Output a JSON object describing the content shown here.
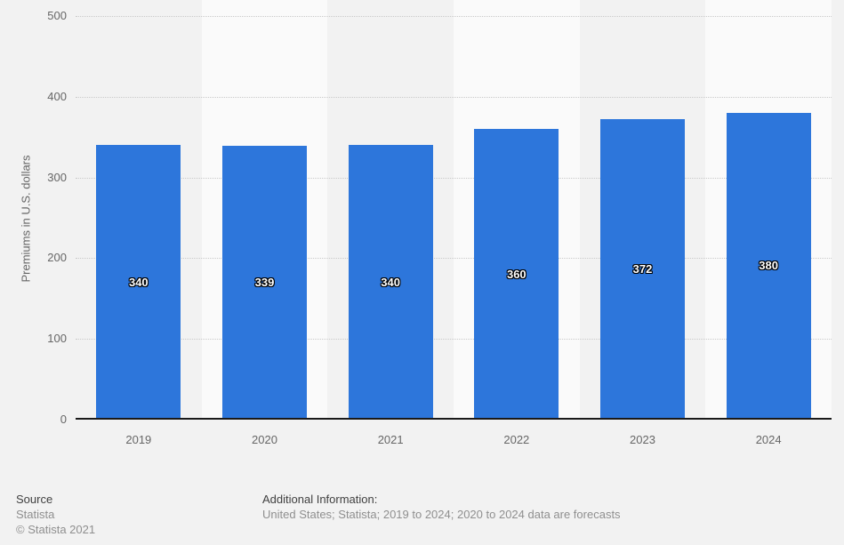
{
  "chart_data": {
    "type": "bar",
    "categories": [
      "2019",
      "2020",
      "2021",
      "2022",
      "2023",
      "2024"
    ],
    "values": [
      340,
      339,
      340,
      360,
      372,
      380
    ],
    "bar_labels": [
      "340",
      "339",
      "340",
      "360",
      "372",
      "380"
    ],
    "title": "",
    "xlabel": "",
    "ylabel": "Premiums in U.S. dollars",
    "ylim": [
      0,
      500
    ],
    "yticks": [
      0,
      100,
      200,
      300,
      400,
      500
    ],
    "grid": "horizontal-dotted",
    "legend": null,
    "layout_hint": "alternating vertical column shading, value labels centered inside bars"
  },
  "colors": {
    "bar": "#2d76db",
    "background": "#f2f2f2",
    "stripe_light": "#fafafa",
    "gridline": "#c9c9c9",
    "axis_line": "#1a1a1a",
    "tick_text": "#666666",
    "axis_title_text": "#666666",
    "footer_heading_text": "#404040",
    "footer_gray_text": "#8f8f8f",
    "bar_label_text": "#ffffff"
  },
  "footer": {
    "source_heading": "Source",
    "source_name": "Statista",
    "copyright": "© Statista 2021",
    "additional_heading": "Additional Information:",
    "additional_text": "United States; Statista; 2019 to 2024; 2020 to 2024 data are forecasts"
  }
}
